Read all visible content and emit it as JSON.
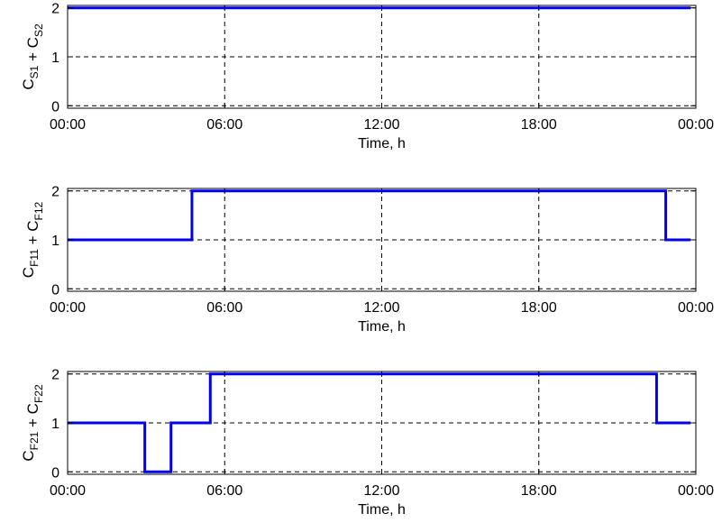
{
  "chart_data": [
    {
      "type": "line",
      "line_style": "step",
      "xlabel": "Time, h",
      "ylabel": {
        "parts": [
          {
            "text": "C",
            "sub": "S1"
          },
          {
            "text": " + "
          },
          {
            "text": "C",
            "sub": "S2"
          }
        ]
      },
      "x_tick_labels": [
        "00:00",
        "06:00",
        "12:00",
        "18:00",
        "00:00"
      ],
      "x_tick_hours": [
        0,
        6,
        12,
        18,
        24
      ],
      "y_ticks": [
        0,
        1,
        2
      ],
      "xlim": [
        0,
        24
      ],
      "ylim": [
        -0.05,
        2.05
      ],
      "grid": true,
      "series": [
        {
          "color": "#0000ee",
          "x": [
            0,
            23.8
          ],
          "y": [
            2,
            2
          ]
        }
      ]
    },
    {
      "type": "line",
      "line_style": "step",
      "xlabel": "Time, h",
      "ylabel": {
        "parts": [
          {
            "text": "C",
            "sub": "F11"
          },
          {
            "text": " + "
          },
          {
            "text": "C",
            "sub": "F12"
          }
        ]
      },
      "x_tick_labels": [
        "00:00",
        "06:00",
        "12:00",
        "18:00",
        "00:00"
      ],
      "x_tick_hours": [
        0,
        6,
        12,
        18,
        24
      ],
      "y_ticks": [
        0,
        1,
        2
      ],
      "xlim": [
        0,
        24
      ],
      "ylim": [
        -0.05,
        2.05
      ],
      "grid": true,
      "series": [
        {
          "color": "#0000ee",
          "x": [
            0,
            4.75,
            4.75,
            22.85,
            22.85,
            23.8
          ],
          "y": [
            1,
            1,
            2,
            2,
            1,
            1
          ]
        }
      ]
    },
    {
      "type": "line",
      "line_style": "step",
      "xlabel": "Time, h",
      "ylabel": {
        "parts": [
          {
            "text": "C",
            "sub": "F21"
          },
          {
            "text": " + "
          },
          {
            "text": "C",
            "sub": "F22"
          }
        ]
      },
      "x_tick_labels": [
        "00:00",
        "06:00",
        "12:00",
        "18:00",
        "00:00"
      ],
      "x_tick_hours": [
        0,
        6,
        12,
        18,
        24
      ],
      "y_ticks": [
        0,
        1,
        2
      ],
      "xlim": [
        0,
        24
      ],
      "ylim": [
        -0.05,
        2.05
      ],
      "grid": true,
      "series": [
        {
          "color": "#0000ee",
          "x": [
            0,
            2.95,
            2.95,
            3.95,
            3.95,
            5.45,
            5.45,
            22.5,
            22.5,
            23.8
          ],
          "y": [
            1,
            1,
            0,
            0,
            1,
            1,
            2,
            2,
            1,
            1
          ]
        }
      ]
    }
  ]
}
